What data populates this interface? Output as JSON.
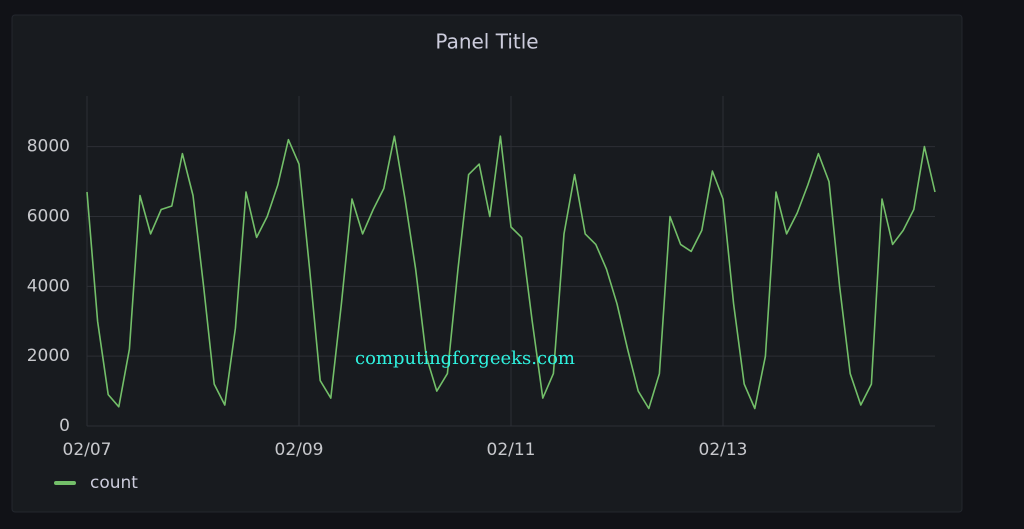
{
  "chart_data": {
    "type": "line",
    "title": "Panel Title",
    "watermark": "computingforgeeks.com",
    "x": [
      0,
      0.1,
      0.2,
      0.3,
      0.4,
      0.5,
      0.6,
      0.7,
      0.8,
      0.9,
      1,
      1.1,
      1.2,
      1.3,
      1.4,
      1.5,
      1.6,
      1.7,
      1.8,
      1.9,
      2,
      2.1,
      2.2,
      2.3,
      2.4,
      2.5,
      2.6,
      2.7,
      2.8,
      2.9,
      3,
      3.1,
      3.2,
      3.3,
      3.4,
      3.5,
      3.6,
      3.7,
      3.8,
      3.9,
      4,
      4.1,
      4.2,
      4.3,
      4.4,
      4.5,
      4.6,
      4.7,
      4.8,
      4.9,
      5,
      5.1,
      5.2,
      5.3,
      5.4,
      5.5,
      5.6,
      5.7,
      5.8,
      5.9,
      6,
      6.1,
      6.2,
      6.3,
      6.4,
      6.5,
      6.6,
      6.7,
      6.8,
      6.9,
      7,
      7.1,
      7.2,
      7.3,
      7.4,
      7.5,
      7.6,
      7.7,
      7.8,
      7.9,
      8
    ],
    "series": [
      {
        "name": "count",
        "color": "#73bf69",
        "values": [
          6700,
          3000,
          900,
          550,
          2200,
          6600,
          5500,
          6200,
          6300,
          7800,
          6600,
          4000,
          1200,
          600,
          2800,
          6700,
          5400,
          6000,
          6900,
          8200,
          7500,
          4500,
          1300,
          800,
          3500,
          6500,
          5500,
          6200,
          6800,
          8300,
          6500,
          4500,
          2000,
          1000,
          1500,
          4500,
          7200,
          7500,
          6000,
          8300,
          5700,
          5400,
          3000,
          800,
          1500,
          5500,
          7200,
          5500,
          5200,
          4500,
          3500,
          2200,
          1000,
          500,
          1500,
          6000,
          5200,
          5000,
          5600,
          7300,
          6500,
          3500,
          1200,
          500,
          2000,
          6700,
          5500,
          6100,
          6900,
          7800,
          7000,
          4000,
          1500,
          600,
          1200,
          6500,
          5200,
          5600,
          6200,
          8000,
          6700
        ]
      }
    ],
    "xlim": [
      0,
      8
    ],
    "xticks": [
      {
        "value": 0,
        "label": "02/07"
      },
      {
        "value": 2,
        "label": "02/09"
      },
      {
        "value": 4,
        "label": "02/11"
      },
      {
        "value": 6,
        "label": "02/13"
      }
    ],
    "ylim": [
      0,
      9450
    ],
    "yticks": [
      0,
      2000,
      4000,
      6000,
      8000
    ],
    "grid": true,
    "legend": "bottom-left"
  }
}
